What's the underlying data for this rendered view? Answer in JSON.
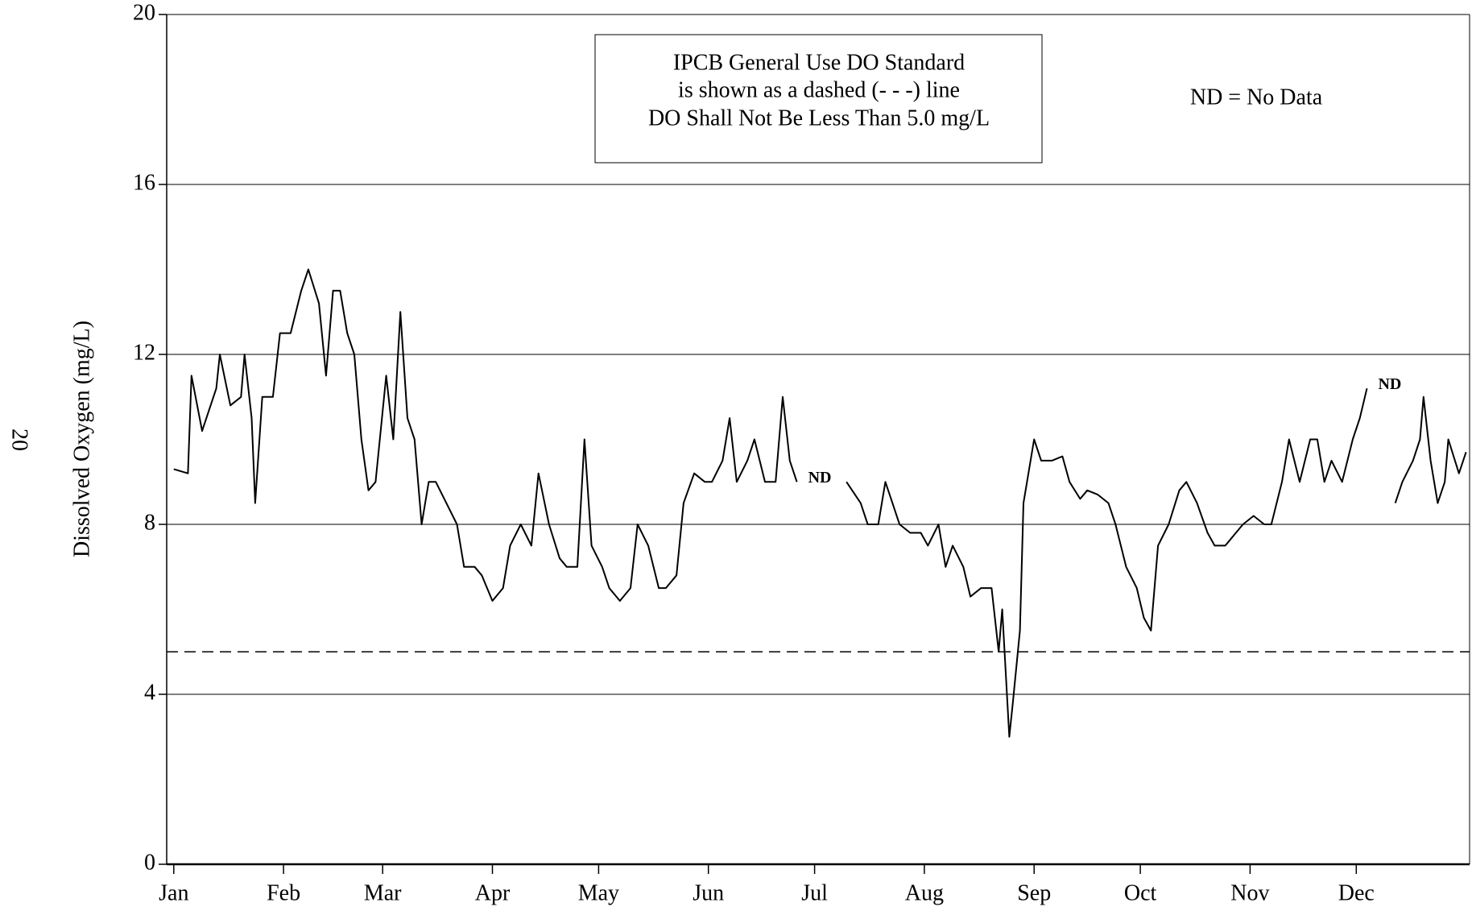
{
  "chart_data": {
    "type": "line",
    "page_number": "20",
    "ylabel": "Dissolved Oxygen (mg/L)",
    "annotations": {
      "box": [
        "IPCB General Use DO Standard",
        "is shown as a dashed (- - -) line",
        "DO Shall Not Be Less Than 5.0 mg/L"
      ],
      "legend_note": "ND = No Data",
      "gap_labels": [
        "ND",
        "ND"
      ]
    },
    "standard_line": 5,
    "xlim": [
      -2,
      366
    ],
    "xticks": [
      {
        "value": 0,
        "label": "Jan"
      },
      {
        "value": 31,
        "label": "Feb"
      },
      {
        "value": 59,
        "label": "Mar"
      },
      {
        "value": 90,
        "label": "Apr"
      },
      {
        "value": 120,
        "label": "May"
      },
      {
        "value": 151,
        "label": "Jun"
      },
      {
        "value": 181,
        "label": "Jul"
      },
      {
        "value": 212,
        "label": "Aug"
      },
      {
        "value": 243,
        "label": "Sep"
      },
      {
        "value": 273,
        "label": "Oct"
      },
      {
        "value": 304,
        "label": "Nov"
      },
      {
        "value": 334,
        "label": "Dec"
      }
    ],
    "ylim": [
      0,
      20
    ],
    "yticks": [
      0,
      4,
      8,
      12,
      16,
      20
    ],
    "grid": true,
    "x": [
      0,
      4,
      5,
      8,
      12,
      13,
      16,
      19,
      20,
      22,
      23,
      25,
      28,
      30,
      33,
      36,
      38,
      41,
      43,
      45,
      47,
      49,
      51,
      53,
      55,
      57,
      60,
      62,
      64,
      66,
      68,
      70,
      72,
      74,
      77,
      80,
      82,
      85,
      87,
      90,
      93,
      95,
      98,
      101,
      103,
      106,
      109,
      111,
      114,
      116,
      118,
      121,
      123,
      126,
      129,
      131,
      134,
      137,
      139,
      142,
      144,
      147,
      150,
      152,
      155,
      157,
      159,
      162,
      164,
      167,
      170,
      172,
      174,
      176,
      183,
      190,
      194,
      196,
      199,
      201,
      203,
      205,
      208,
      211,
      213,
      216,
      218,
      220,
      223,
      225,
      228,
      231,
      233,
      234,
      236,
      237,
      239,
      240,
      243,
      245,
      248,
      251,
      253,
      256,
      258,
      261,
      264,
      266,
      269,
      272,
      274,
      276,
      278,
      281,
      284,
      286,
      289,
      292,
      294,
      297,
      300,
      302,
      305,
      308,
      310,
      313,
      315,
      318,
      321,
      323,
      325,
      327,
      330,
      333,
      335,
      337,
      341,
      345,
      347,
      350,
      352,
      353,
      355,
      357,
      359,
      360,
      363,
      365
    ],
    "series": [
      {
        "name": "Dissolved Oxygen",
        "color": "#000000",
        "values": [
          9.3,
          9.2,
          11.5,
          10.2,
          11.2,
          12.0,
          10.8,
          11.0,
          12.0,
          10.5,
          8.5,
          11.0,
          11.0,
          12.5,
          12.5,
          13.5,
          14.0,
          13.2,
          11.5,
          13.5,
          13.5,
          12.5,
          12.0,
          10.0,
          8.8,
          9.0,
          11.5,
          10.0,
          13.0,
          10.5,
          10.0,
          8.0,
          9.0,
          9.0,
          8.5,
          8.0,
          7.0,
          7.0,
          6.8,
          6.2,
          6.5,
          7.5,
          8.0,
          7.5,
          9.2,
          8.0,
          7.2,
          7.0,
          7.0,
          10.0,
          7.5,
          7.0,
          6.5,
          6.2,
          6.5,
          8.0,
          7.5,
          6.5,
          6.5,
          6.8,
          8.5,
          9.2,
          9.0,
          9.0,
          9.5,
          10.5,
          9.0,
          9.5,
          10.0,
          9.0,
          9.0,
          11.0,
          9.5,
          9.0,
          null,
          9.0,
          8.5,
          8.0,
          8.0,
          9.0,
          8.5,
          8.0,
          7.8,
          7.8,
          7.5,
          8.0,
          7.0,
          7.5,
          7.0,
          6.3,
          6.5,
          6.5,
          5.0,
          6.0,
          3.0,
          3.8,
          5.5,
          8.5,
          10.0,
          9.5,
          9.5,
          9.6,
          9.0,
          8.6,
          8.8,
          8.7,
          8.5,
          8.0,
          7.0,
          6.5,
          5.8,
          5.5,
          7.5,
          8.0,
          8.8,
          9.0,
          8.5,
          7.8,
          7.5,
          7.5,
          7.8,
          8.0,
          8.2,
          8.0,
          8.0,
          9.0,
          10.0,
          9.0,
          10.0,
          10.0,
          9.0,
          9.5,
          9.0,
          10.0,
          10.5,
          11.2,
          null,
          8.5,
          9.0,
          9.5,
          10.0,
          11.0,
          9.5,
          8.5,
          9.0,
          10.0,
          9.2,
          9.7
        ]
      }
    ]
  }
}
